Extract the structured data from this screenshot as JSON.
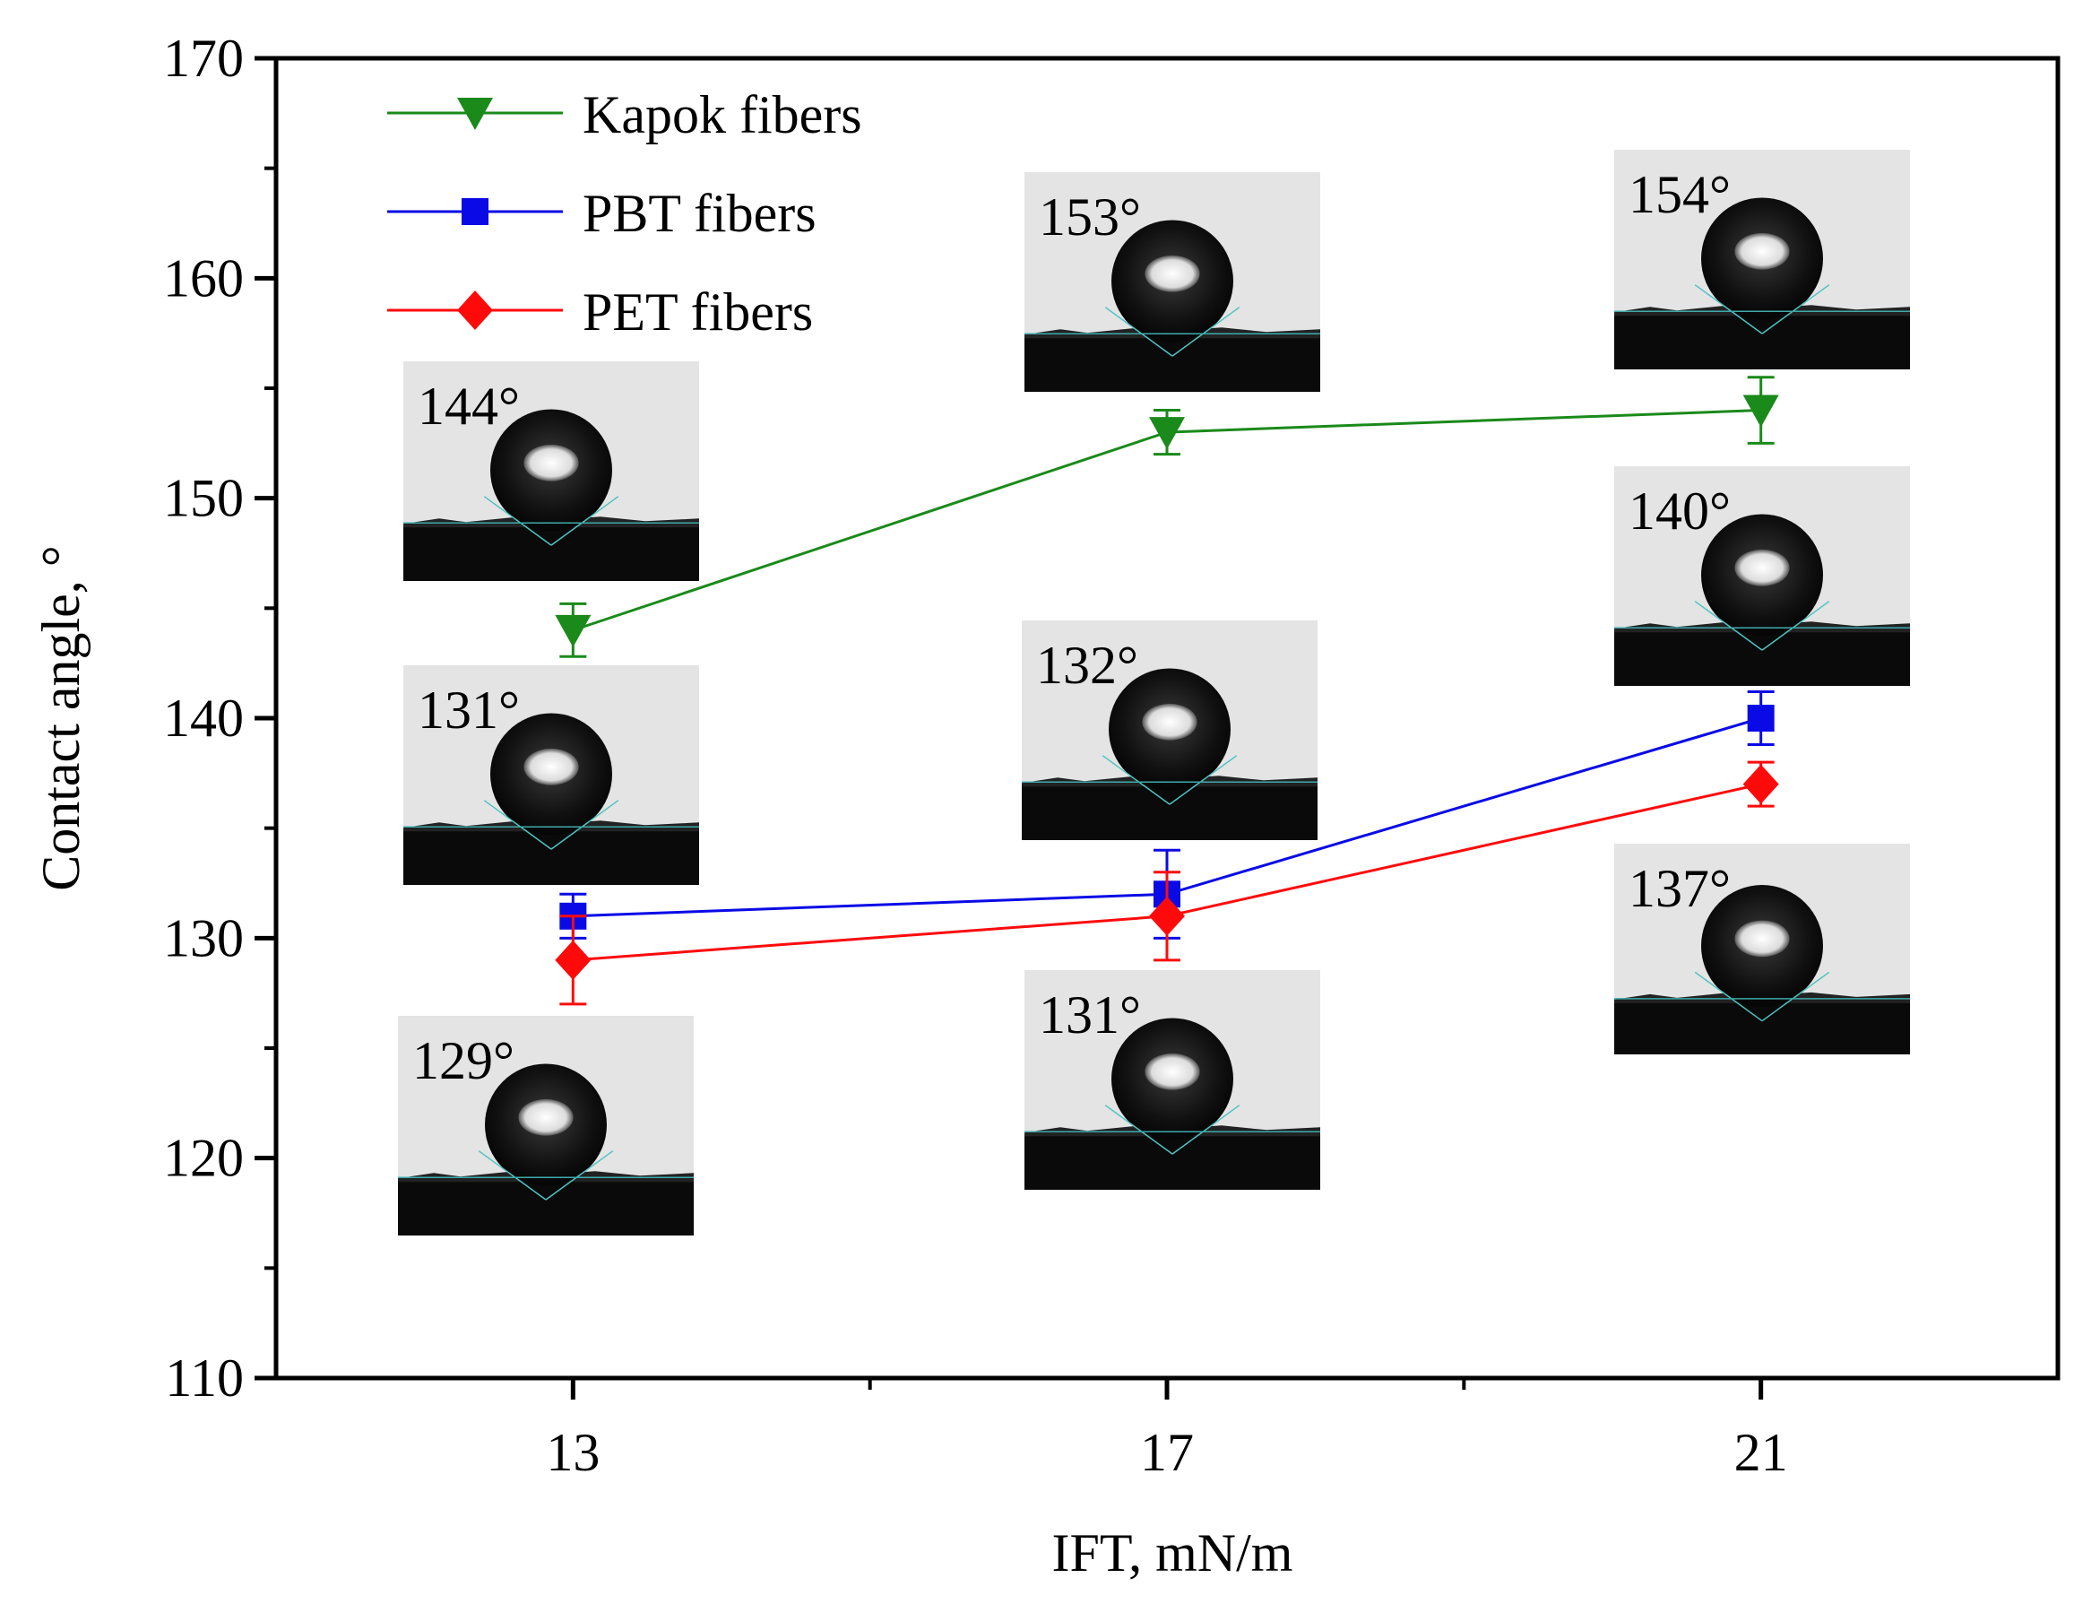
{
  "chart_data": {
    "type": "line",
    "title": "",
    "xlabel": "IFT, mN/m",
    "ylabel": "Contact angle, °",
    "x": [
      13,
      17,
      21
    ],
    "xlim": [
      11,
      23
    ],
    "ylim": [
      110,
      170
    ],
    "x_ticks": [
      "13",
      "17",
      "21"
    ],
    "y_ticks": [
      "110",
      "120",
      "130",
      "140",
      "150",
      "160",
      "170"
    ],
    "grid": false,
    "legend_position": "top-left",
    "series": [
      {
        "name": "Kapok fibers",
        "values": [
          144,
          153,
          154
        ],
        "errors": [
          1.2,
          1.0,
          1.5
        ],
        "color": "#1a8a1a",
        "marker": "triangle-down"
      },
      {
        "name": "PBT fibers",
        "values": [
          131,
          132,
          140
        ],
        "errors": [
          1.0,
          2.0,
          1.2
        ],
        "color": "#0a0ae6",
        "marker": "square"
      },
      {
        "name": "PET fibers",
        "values": [
          129,
          131,
          137
        ],
        "errors": [
          2.0,
          2.0,
          1.0
        ],
        "color": "#ff0a0a",
        "marker": "diamond"
      }
    ],
    "annotations": [
      {
        "label": "144°",
        "series": "Kapok fibers",
        "x": 13
      },
      {
        "label": "153°",
        "series": "Kapok fibers",
        "x": 17
      },
      {
        "label": "154°",
        "series": "Kapok fibers",
        "x": 21
      },
      {
        "label": "131°",
        "series": "PBT fibers",
        "x": 13
      },
      {
        "label": "132°",
        "series": "PBT fibers",
        "x": 17
      },
      {
        "label": "140°",
        "series": "PBT fibers",
        "x": 21
      },
      {
        "label": "129°",
        "series": "PET fibers",
        "x": 13
      },
      {
        "label": "131°",
        "series": "PET fibers",
        "x": 17
      },
      {
        "label": "137°",
        "series": "PET fibers",
        "x": 21
      }
    ]
  }
}
